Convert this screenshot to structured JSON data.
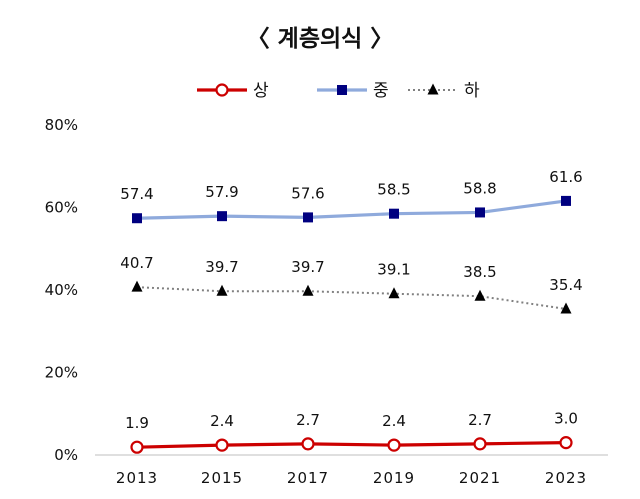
{
  "chart_data": {
    "type": "line",
    "title": "〈  계층의식  〉",
    "xlabel": "",
    "ylabel": "",
    "categories": [
      "2013",
      "2015",
      "2017",
      "2019",
      "2021",
      "2023"
    ],
    "ylim": [
      0,
      80
    ],
    "yticks": [
      "0%",
      "20%",
      "40%",
      "60%",
      "80%"
    ],
    "grid": false,
    "legend_position": "top-center",
    "series": [
      {
        "name": "상",
        "values": [
          1.9,
          2.4,
          2.7,
          2.4,
          2.7,
          3.0
        ],
        "color": "#cc0000",
        "marker": "circle-open",
        "line": "solid"
      },
      {
        "name": "중",
        "values": [
          57.4,
          57.9,
          57.6,
          58.5,
          58.8,
          61.6
        ],
        "color": "#8faadc",
        "marker_color": "#000080",
        "marker": "square",
        "line": "solid"
      },
      {
        "name": "하",
        "values": [
          40.7,
          39.7,
          39.7,
          39.1,
          38.5,
          35.4
        ],
        "color": "#808080",
        "marker_color": "#000000",
        "marker": "triangle",
        "line": "dotted"
      }
    ],
    "data_labels": [
      [
        "1.9",
        "2.4",
        "2.7",
        "2.4",
        "2.7",
        "3.0"
      ],
      [
        "57.4",
        "57.9",
        "57.6",
        "58.5",
        "58.8",
        "61.6"
      ],
      [
        "40.7",
        "39.7",
        "39.7",
        "39.1",
        "38.5",
        "35.4"
      ]
    ]
  }
}
